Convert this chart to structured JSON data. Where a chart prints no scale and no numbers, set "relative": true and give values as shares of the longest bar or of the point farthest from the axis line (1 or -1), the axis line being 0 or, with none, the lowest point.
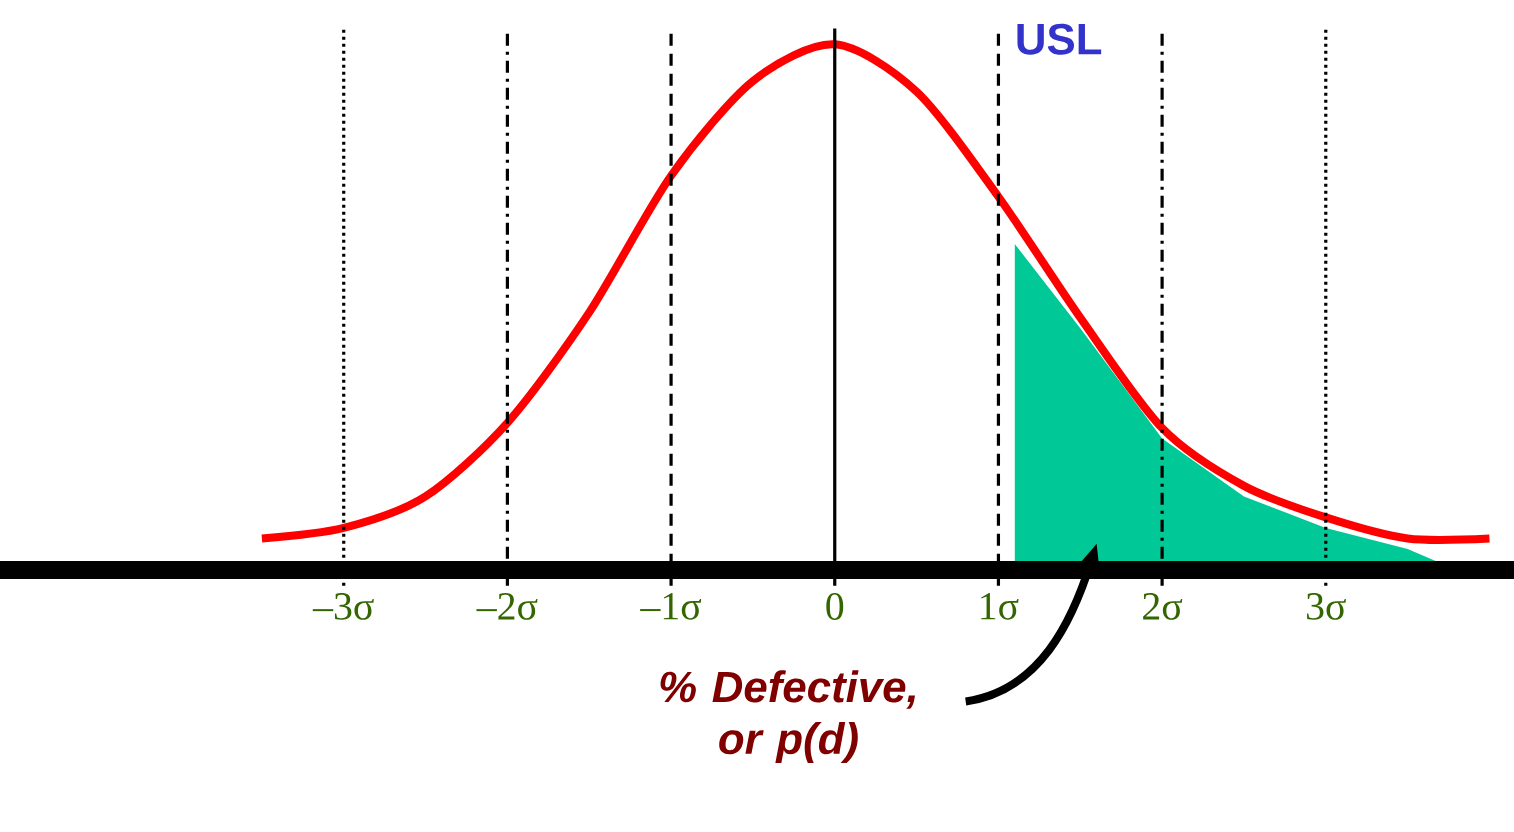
{
  "chart_data": {
    "type": "line",
    "relative": true,
    "xlim": [
      -5.1,
      4.15
    ],
    "xticks": [
      {
        "value": -3,
        "label": "–3σ"
      },
      {
        "value": -2,
        "label": "–2σ"
      },
      {
        "value": -1,
        "label": "–1σ"
      },
      {
        "value": 0,
        "label": "0"
      },
      {
        "value": 1,
        "label": "1σ"
      },
      {
        "value": 2,
        "label": "2σ"
      },
      {
        "value": 3,
        "label": "3σ"
      }
    ],
    "tick_labels": "x",
    "marker": "none",
    "series": [
      {
        "type": "area",
        "color": "#00c896",
        "x": [
          1.1,
          1.5,
          2,
          2.5,
          3,
          3.5,
          3.8
        ],
        "values": [
          0.62,
          0.46,
          0.25,
          0.14,
          0.08,
          0.04,
          0.0
        ]
      },
      {
        "color": "#ff0000",
        "x": [
          -3.5,
          -3,
          -2.5,
          -2,
          -1.5,
          -1,
          -0.5,
          0,
          0.5,
          1,
          1.5,
          2,
          2.5,
          3,
          3.5,
          4
        ],
        "values": [
          0.06,
          0.08,
          0.14,
          0.28,
          0.49,
          0.75,
          0.93,
          1,
          0.91,
          0.71,
          0.48,
          0.27,
          0.16,
          0.1,
          0.06,
          0.06
        ]
      }
    ],
    "ref_lines": [
      {
        "axis": "x",
        "value": -3,
        "line_style": "dotted"
      },
      {
        "axis": "x",
        "value": -2,
        "line_style": "dashdot"
      },
      {
        "axis": "x",
        "value": -1,
        "line_style": "dashed"
      },
      {
        "axis": "x",
        "value": 0,
        "line_style": "solid"
      },
      {
        "axis": "x",
        "value": 1,
        "line_style": "dashed",
        "label": "USL"
      },
      {
        "axis": "x",
        "value": 2,
        "line_style": "dashdot"
      },
      {
        "axis": "x",
        "value": 3,
        "line_style": "dotted"
      }
    ],
    "annotations": [
      "% Defective, or p(d)"
    ]
  }
}
